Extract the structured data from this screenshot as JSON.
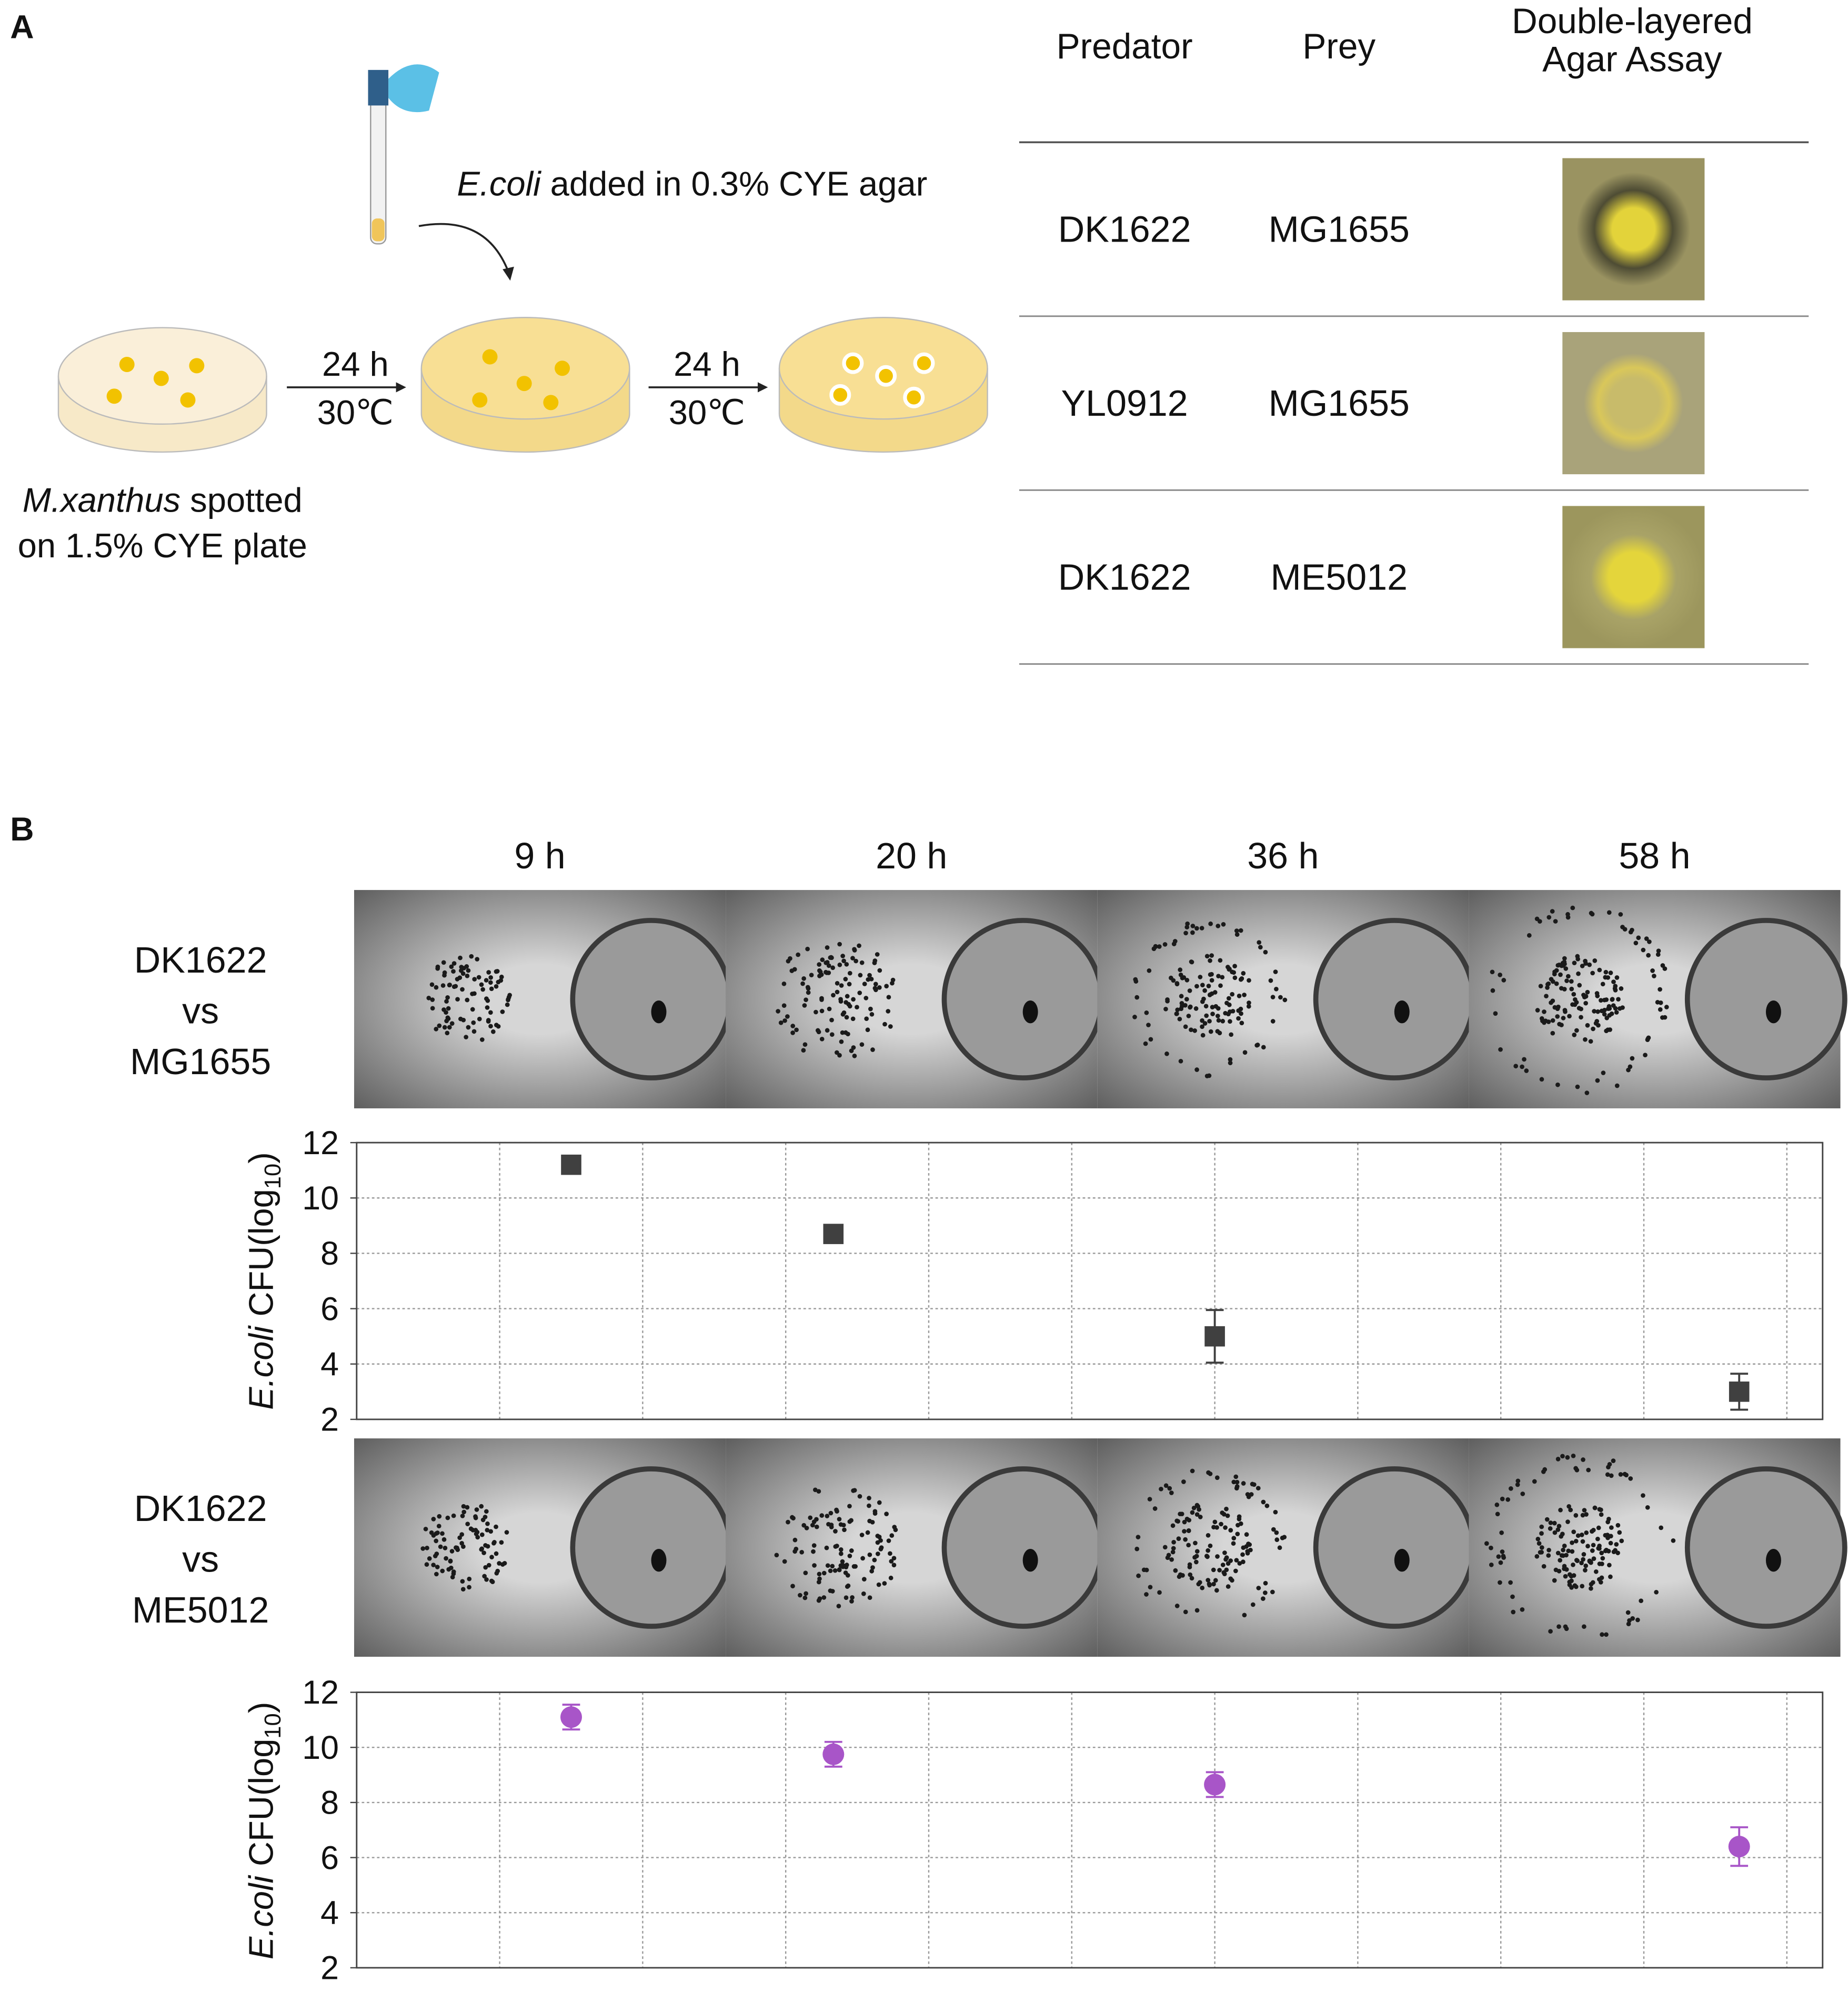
{
  "panel_a": {
    "label": "A",
    "pipette_italic": "E.coli",
    "pipette_text": " added in 0.3% CYE agar",
    "arrow1": [
      "24 h",
      "30℃"
    ],
    "arrow2": [
      "24 h",
      "30℃"
    ],
    "caption_italic": "M.xanthus",
    "caption_line1": " spotted",
    "caption_line2": "on 1.5% CYE plate",
    "table": {
      "headers": [
        [
          "Predator"
        ],
        [
          "Prey"
        ],
        [
          "Double-layered",
          "Agar Assay"
        ]
      ],
      "rows": [
        [
          "DK1622",
          "MG1655"
        ],
        [
          "YL0912",
          "MG1655"
        ],
        [
          "DK1622",
          "ME5012"
        ]
      ]
    }
  },
  "panel_b": {
    "label": "B",
    "time_labels": [
      "9 h",
      "20 h",
      "36 h",
      "58 h"
    ],
    "rows": [
      [
        "DK1622",
        "vs",
        "MG1655"
      ],
      [
        "DK1622",
        "vs",
        "ME5012"
      ]
    ]
  },
  "chart_data": [
    {
      "type": "scatter",
      "ylabel": {
        "italic": "E.coli",
        "text": " CFU(log",
        "sub": "10",
        "close": ")"
      },
      "x": [
        9,
        20,
        36,
        58
      ],
      "series": [
        {
          "color": "#404040",
          "marker": "square",
          "values": [
            11.2,
            8.7,
            5.0,
            3.0
          ],
          "errors": [
            0.1,
            0.1,
            0.95,
            0.65
          ]
        }
      ],
      "xlim": [
        0,
        61.5
      ],
      "xticks": [
        6,
        12,
        18,
        24,
        30,
        36,
        42,
        48,
        54,
        60
      ],
      "ylim": [
        2,
        12
      ],
      "yticks": [
        2,
        4,
        6,
        8,
        10,
        12
      ],
      "grid": true
    },
    {
      "type": "scatter",
      "ylabel": {
        "italic": "E.coli",
        "text": " CFU(log",
        "sub": "10",
        "close": ")"
      },
      "x": [
        9,
        20,
        36,
        58
      ],
      "series": [
        {
          "color": "#a855c8",
          "marker": "circle",
          "values": [
            11.1,
            9.75,
            8.65,
            6.4
          ],
          "errors": [
            0.45,
            0.45,
            0.45,
            0.7
          ]
        }
      ],
      "xlim": [
        0,
        61.5
      ],
      "xticks": [
        6,
        12,
        18,
        24,
        30,
        36,
        42,
        48,
        54,
        60
      ],
      "ylim": [
        2,
        12
      ],
      "yticks": [
        2,
        4,
        6,
        8,
        10,
        12
      ],
      "grid": true
    }
  ]
}
